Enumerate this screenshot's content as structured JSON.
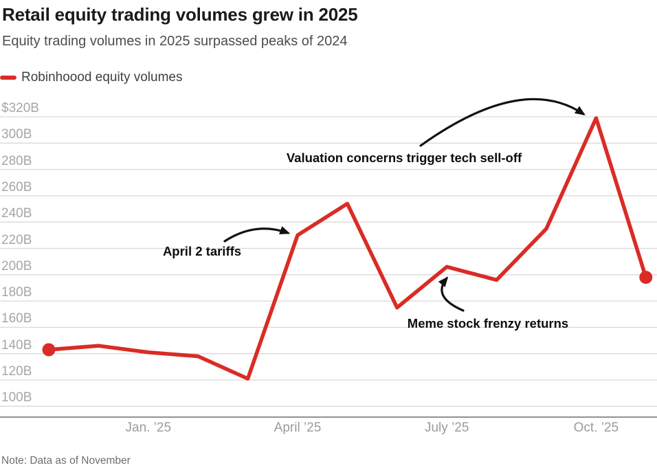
{
  "header": {
    "title": "Retail equity trading volumes grew in 2025",
    "subtitle": "Equity trading volumes in 2025 surpassed peaks of 2024"
  },
  "footer": {
    "note": "Note: Data as of November"
  },
  "colors": {
    "series_red": "#d92c25",
    "gridline": "#d9d9d9",
    "axis_line": "#919191",
    "annotation_text": "#0d0d0d"
  },
  "chart_data": {
    "type": "line",
    "title": "Retail equity trading volumes grew in 2025",
    "subtitle": "Equity trading volumes in 2025 surpassed peaks of 2024",
    "unit": "$ billions",
    "grid": true,
    "legend_position": "top-left",
    "ylim": [
      100,
      320
    ],
    "x": [
      "Nov ’24",
      "Dec ’24",
      "Jan ’25",
      "Feb ’25",
      "Mar ’25",
      "Apr ’25",
      "May ’25",
      "Jun ’25",
      "Jul ’25",
      "Aug ’25",
      "Sep ’25",
      "Oct ’25",
      "Nov ’25"
    ],
    "series": [
      {
        "name": "Robinhoood equity volumes",
        "color": "#d92c25",
        "values": [
          143,
          146,
          141,
          138,
          121,
          230,
          254,
          175,
          206,
          196,
          235,
          319,
          198
        ]
      }
    ],
    "y_ticks": [
      {
        "value": 320,
        "label": "$320B"
      },
      {
        "value": 300,
        "label": "300B"
      },
      {
        "value": 280,
        "label": "280B"
      },
      {
        "value": 260,
        "label": "260B"
      },
      {
        "value": 240,
        "label": "240B"
      },
      {
        "value": 220,
        "label": "220B"
      },
      {
        "value": 200,
        "label": "200B"
      },
      {
        "value": 180,
        "label": "180B"
      },
      {
        "value": 160,
        "label": "160B"
      },
      {
        "value": 140,
        "label": "140B"
      },
      {
        "value": 120,
        "label": "120B"
      },
      {
        "value": 100,
        "label": "100B"
      }
    ],
    "x_ticks": [
      {
        "position": 2,
        "label": "Jan. ’25"
      },
      {
        "position": 5,
        "label": "April ’25"
      },
      {
        "position": 8,
        "label": "July ’25"
      },
      {
        "position": 11,
        "label": "Oct. ’25"
      }
    ],
    "annotations": [
      {
        "text": "April 2 tariffs",
        "target_x": "Apr ’25",
        "target_value": 230
      },
      {
        "text": "Valuation concerns trigger tech sell-off",
        "target_x": "Oct ’25",
        "target_value": 319
      },
      {
        "text": "Meme stock frenzy returns",
        "target_x": "Jul ’25",
        "target_value": 206
      }
    ]
  }
}
